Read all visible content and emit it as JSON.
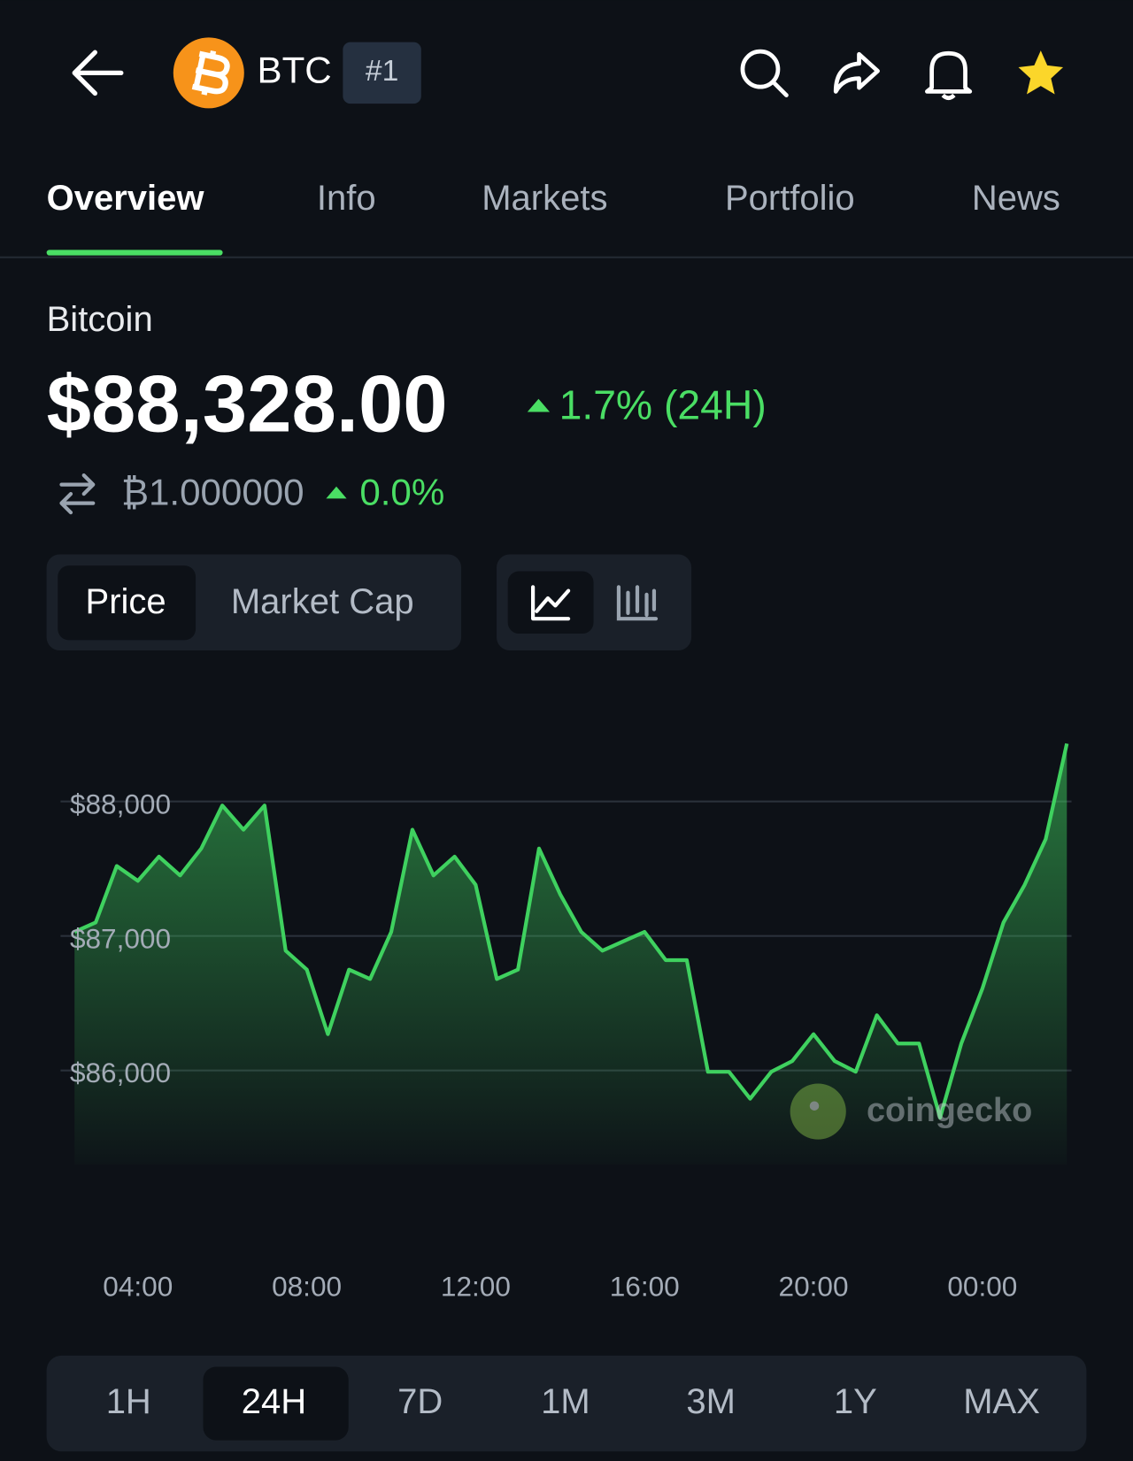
{
  "header": {
    "symbol": "BTC",
    "rank": "#1"
  },
  "tabs": [
    "Overview",
    "Info",
    "Markets",
    "Portfolio",
    "News"
  ],
  "coin": {
    "name": "Bitcoin",
    "price": "$88,328.00",
    "change": "1.7% (24H)",
    "btc_price": "₿1.000000",
    "btc_change": "0.0%"
  },
  "toggles": [
    "Price",
    "Market Cap"
  ],
  "ranges": [
    "1H",
    "24H",
    "7D",
    "1M",
    "3M",
    "1Y",
    "MAX"
  ],
  "watermark": "coingecko",
  "chart_data": {
    "type": "line",
    "color": "#3fd15f",
    "grid": true,
    "x": [
      "02:30",
      "03:00",
      "03:30",
      "04:00",
      "04:30",
      "05:00",
      "05:30",
      "06:00",
      "06:30",
      "07:00",
      "07:30",
      "08:00",
      "08:30",
      "09:00",
      "09:30",
      "10:00",
      "10:30",
      "11:00",
      "11:30",
      "12:00",
      "12:30",
      "13:00",
      "13:30",
      "14:00",
      "14:30",
      "15:00",
      "15:30",
      "16:00",
      "16:30",
      "17:00",
      "17:30",
      "18:00",
      "18:30",
      "19:00",
      "19:30",
      "20:00",
      "20:30",
      "21:00",
      "21:30",
      "22:00",
      "22:30",
      "23:00",
      "23:30",
      "00:00",
      "00:30",
      "01:00",
      "01:30",
      "02:00"
    ],
    "values": [
      87030,
      87100,
      87520,
      87410,
      87590,
      87450,
      87650,
      87970,
      87790,
      87970,
      86890,
      86750,
      86270,
      86750,
      86680,
      87030,
      87790,
      87450,
      87590,
      87380,
      86680,
      86750,
      87650,
      87310,
      87030,
      86890,
      86960,
      87030,
      86820,
      86820,
      85990,
      85990,
      85790,
      85990,
      86070,
      86270,
      86070,
      85990,
      86410,
      86200,
      86200,
      85650,
      86200,
      86610,
      87100,
      87380,
      87720,
      88430
    ],
    "ylim": [
      85300,
      88500
    ],
    "yticks": [
      {
        "value": 86000,
        "label": "$86,000"
      },
      {
        "value": 87000,
        "label": "$87,000"
      },
      {
        "value": 88000,
        "label": "$88,000"
      }
    ],
    "xticks": [
      "04:00",
      "08:00",
      "12:00",
      "16:00",
      "20:00",
      "00:00"
    ]
  }
}
